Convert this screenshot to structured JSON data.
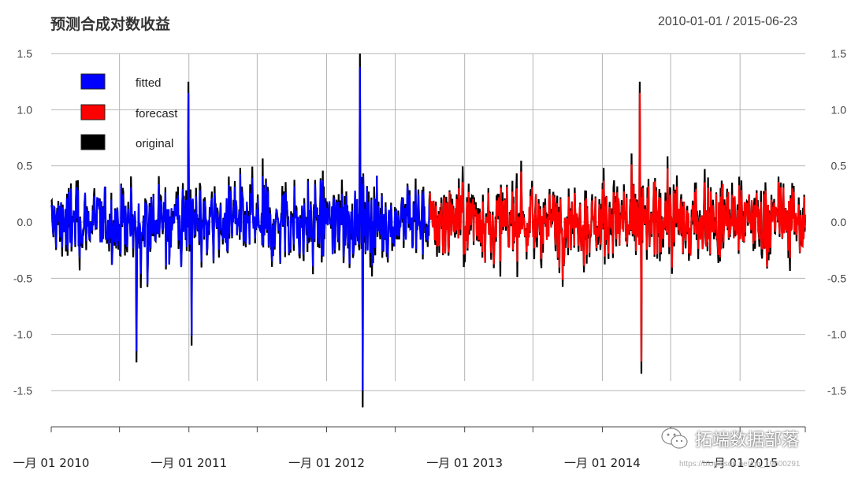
{
  "header": {
    "title": "预测合成对数收益",
    "date_range": "2010-01-01 / 2015-06-23"
  },
  "watermark": {
    "brand": "拓端数据部落",
    "icon": "wechat-icon",
    "credit": "https://blog.csdn.net/qq_19600291"
  },
  "chart_data": {
    "type": "line",
    "title": "预测合成对数收益",
    "ylim": [
      -1.5,
      1.5
    ],
    "y_ticks": [
      1.5,
      1.0,
      0.5,
      0.0,
      -0.5,
      -1.0,
      -1.5
    ],
    "y_tick_labels": [
      "1.5",
      "1.0",
      "0.5",
      "0.0",
      "-0.5",
      "-1.0",
      "-1.5"
    ],
    "x_tick_labels": [
      "一月 01 2010",
      "一月 01 2011",
      "一月 01 2012",
      "一月 01 2013",
      "一月 01 2014",
      "一月 01 2015"
    ],
    "x_range": [
      "2010-01-01",
      "2015-06-23"
    ],
    "grid": true,
    "legend_position": "top-left",
    "series": [
      {
        "name": "fitted",
        "color": "#0000ff",
        "period": [
          "2010-01-01",
          "2012-09-30"
        ],
        "min": -1.35,
        "max": 1.5
      },
      {
        "name": "forecast",
        "color": "#ff0000",
        "period": [
          "2012-09-30",
          "2015-06-23"
        ],
        "min": -1.1,
        "max": 1.25
      },
      {
        "name": "original",
        "color": "#000000",
        "period": [
          "2010-01-01",
          "2015-06-23"
        ],
        "min": -1.65,
        "max": 1.27
      }
    ],
    "extremes": [
      {
        "date": "2010-08-15",
        "value": -1.25
      },
      {
        "date": "2010-12-31",
        "value": 1.25
      },
      {
        "date": "2011-01-08",
        "value": -1.1
      },
      {
        "date": "2012-03-30",
        "value": 1.5
      },
      {
        "date": "2012-04-06",
        "value": -1.65
      },
      {
        "date": "2014-04-10",
        "value": 1.25
      },
      {
        "date": "2014-04-14",
        "value": -1.35
      }
    ]
  }
}
